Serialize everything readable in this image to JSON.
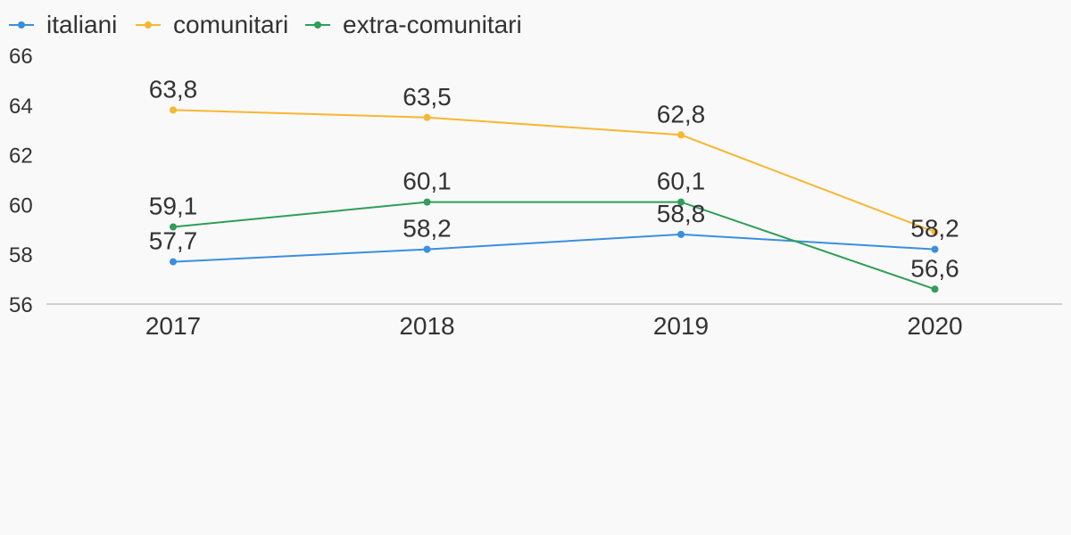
{
  "chart_data": {
    "type": "line",
    "title": "",
    "xlabel": "",
    "ylabel": "",
    "categories": [
      "2017",
      "2018",
      "2019",
      "2020"
    ],
    "ylim": [
      56,
      66
    ],
    "yticks": [
      56,
      58,
      60,
      62,
      64,
      66
    ],
    "grid": false,
    "legend_position": "top-left",
    "series": [
      {
        "name": "italiani",
        "color": "#3a8fdd",
        "values": [
          57.7,
          58.2,
          58.8,
          58.2
        ],
        "labels": [
          "57,7",
          "58,2",
          "58,8",
          "58,2"
        ]
      },
      {
        "name": "comunitari",
        "color": "#f7b731",
        "values": [
          63.8,
          63.5,
          62.8,
          58.9
        ],
        "labels": [
          "63,8",
          "63,5",
          "62,8",
          ""
        ]
      },
      {
        "name": "extra-comunitari",
        "color": "#2e9e58",
        "values": [
          59.1,
          60.1,
          60.1,
          56.6
        ],
        "labels": [
          "59,1",
          "60,1",
          "60,1",
          "56,6"
        ]
      }
    ]
  }
}
